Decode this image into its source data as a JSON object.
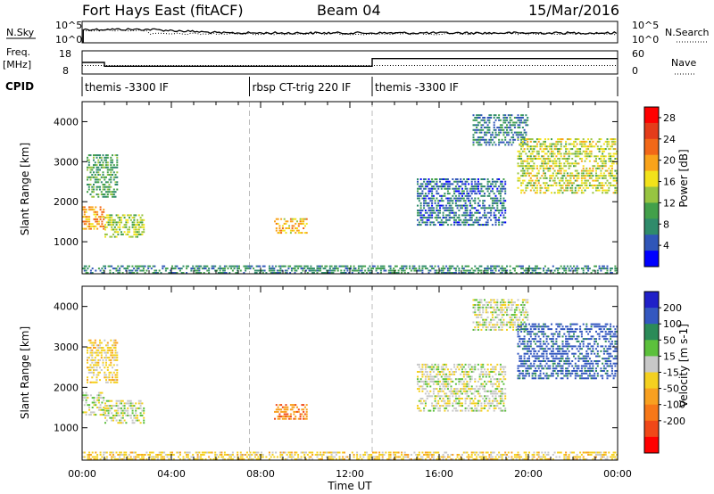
{
  "header": {
    "station": "Fort Hays East (fitACF)",
    "beam": "Beam 04",
    "date": "15/Mar/2016"
  },
  "strip": {
    "nsky_label": "N.Sky",
    "nsearch_label": "N.Search",
    "nsky_ticks": [
      "10^5",
      "10^0"
    ],
    "nsearch_ticks": [
      "10^5",
      "10^0"
    ],
    "freq_label_1": "Freq.",
    "freq_label_2": "[MHz]",
    "freq_ticks": [
      "18",
      "8"
    ],
    "nave_label": "Nave",
    "nave_ticks": [
      "60",
      "0"
    ],
    "cpid_label": "CPID",
    "cpid_segments": [
      {
        "start": 0,
        "end": 7.5,
        "name": "themis -3300 IF"
      },
      {
        "start": 7.5,
        "end": 13,
        "name": "rbsp CT-trig 220 IF"
      },
      {
        "start": 13,
        "end": 24,
        "name": "themis -3300 IF"
      }
    ],
    "freq_series": {
      "x": [
        0,
        1.0,
        1.0,
        13.0,
        13.0,
        24
      ],
      "y": [
        12,
        12,
        10,
        10,
        14,
        14
      ]
    },
    "nave_series": {
      "x": [
        0,
        24
      ],
      "y": [
        22,
        22
      ]
    }
  },
  "colors": {
    "power": [
      "#0000ff",
      "#3056b8",
      "#2f8b6b",
      "#43a04a",
      "#97c441",
      "#f2e21a",
      "#f9a31a",
      "#f26818",
      "#e43c1a",
      "#ff0000"
    ],
    "velocity": [
      "#2020c8",
      "#3458c0",
      "#2b8b58",
      "#5cc03c",
      "#c8c8c8",
      "#f4d020",
      "#f8a020",
      "#f77818",
      "#f04818",
      "#ff0000"
    ],
    "ground": "#b8b8b8"
  },
  "chart_data": [
    {
      "type": "heatmap",
      "title": "Power",
      "ylabel": "Slant Range [km]",
      "xlabel": "Time UT",
      "xlim": [
        0,
        24
      ],
      "ylim": [
        200,
        4500
      ],
      "xticks": [
        0,
        4,
        8,
        12,
        16,
        20,
        24
      ],
      "xtick_labels": [
        "00:00",
        "04:00",
        "08:00",
        "12:00",
        "16:00",
        "20:00",
        "00:00"
      ],
      "yticks": [
        1000,
        2000,
        3000,
        4000
      ],
      "ytick_labels": [
        "1000",
        "2000",
        "3000",
        "4000"
      ],
      "colorbar_label": "Power [dB]",
      "colorbar_ticks": [
        4,
        8,
        12,
        16,
        20,
        24,
        28
      ],
      "colorbar_range": [
        0,
        30
      ],
      "regions": [
        {
          "x0": 0.0,
          "x1": 1.0,
          "y0": 1300,
          "y1": 1900,
          "value": 20
        },
        {
          "x0": 1.0,
          "x1": 2.8,
          "y0": 1100,
          "y1": 1700,
          "value": 14
        },
        {
          "x0": 0.2,
          "x1": 1.6,
          "y0": 2100,
          "y1": 3200,
          "value": 10
        },
        {
          "x0": 8.6,
          "x1": 10.1,
          "y0": 1200,
          "y1": 1600,
          "value": 18
        },
        {
          "x0": 15.0,
          "x1": 19.0,
          "y0": 1400,
          "y1": 2600,
          "value": 6
        },
        {
          "x0": 17.5,
          "x1": 20.0,
          "y0": 3400,
          "y1": 4200,
          "value": 7
        },
        {
          "x0": 19.5,
          "x1": 24.0,
          "y0": 2200,
          "y1": 3600,
          "value": 15
        },
        {
          "x0": 0.0,
          "x1": 24.0,
          "y0": 200,
          "y1": 420,
          "value": 8
        }
      ]
    },
    {
      "type": "heatmap",
      "title": "Velocity",
      "ylabel": "Slant Range [km]",
      "xlabel": "Time UT",
      "xlim": [
        0,
        24
      ],
      "ylim": [
        200,
        4500
      ],
      "xticks": [
        0,
        4,
        8,
        12,
        16,
        20,
        24
      ],
      "xtick_labels": [
        "00:00",
        "04:00",
        "08:00",
        "12:00",
        "16:00",
        "20:00",
        "00:00"
      ],
      "yticks": [
        1000,
        2000,
        3000,
        4000
      ],
      "ytick_labels": [
        "1000",
        "2000",
        "3000",
        "4000"
      ],
      "colorbar_label": "Velocity [m s-1]",
      "colorbar_ticks": [
        "200",
        "100",
        "50",
        "15",
        "-15",
        "-50",
        "-100",
        "-200"
      ],
      "colorbar_range": [
        -250,
        250
      ],
      "regions": [
        {
          "x0": 0.0,
          "x1": 1.0,
          "y0": 1300,
          "y1": 1900,
          "value": 0
        },
        {
          "x0": 1.0,
          "x1": 2.8,
          "y0": 1100,
          "y1": 1700,
          "value": 0
        },
        {
          "x0": 0.2,
          "x1": 1.6,
          "y0": 2100,
          "y1": 3200,
          "value": -30
        },
        {
          "x0": 8.6,
          "x1": 10.1,
          "y0": 1200,
          "y1": 1600,
          "value": -90
        },
        {
          "x0": 15.0,
          "x1": 19.0,
          "y0": 1400,
          "y1": 2600,
          "value": 0
        },
        {
          "x0": 17.5,
          "x1": 20.0,
          "y0": 3400,
          "y1": 4200,
          "value": 0
        },
        {
          "x0": 19.5,
          "x1": 24.0,
          "y0": 2200,
          "y1": 3600,
          "value": 120
        },
        {
          "x0": 0.0,
          "x1": 24.0,
          "y0": 200,
          "y1": 420,
          "value": -30
        }
      ]
    }
  ],
  "footer": {
    "xlabel": "Time UT"
  }
}
